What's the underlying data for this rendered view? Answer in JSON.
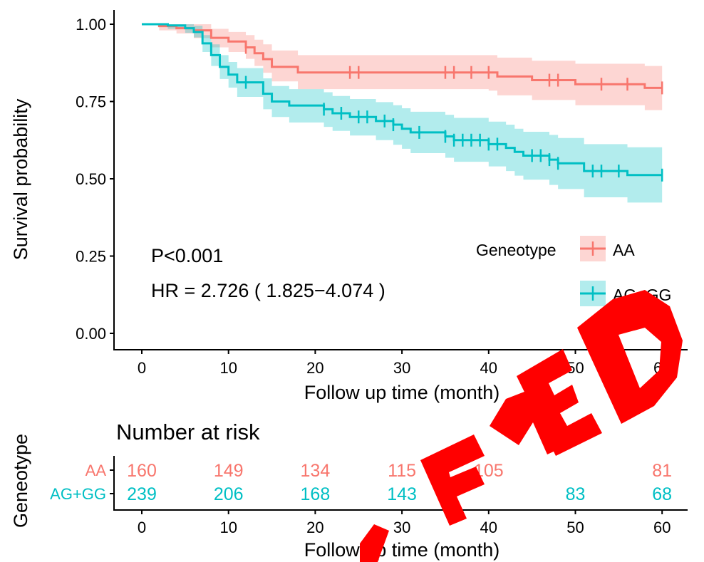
{
  "chart_data": {
    "type": "line",
    "subtype": "kaplan-meier survival curve",
    "ylabel": "Survival probability",
    "xlabel": "Follow up time (month)",
    "x_ticks": [
      0,
      10,
      20,
      30,
      40,
      50,
      60
    ],
    "y_ticks": [
      "0.00",
      "0.25",
      "0.50",
      "0.75",
      "1.00"
    ],
    "xlim": [
      -3,
      64
    ],
    "ylim": [
      0,
      1.02
    ],
    "grid": false,
    "legend": {
      "title": "Geneotype",
      "position": "right-middle",
      "entries": [
        "AA",
        "AG+GG"
      ]
    },
    "annotations": [
      "P<0.001",
      "HR = 2.726 ( 1.825−4.074 )"
    ],
    "series": [
      {
        "name": "AA",
        "color": "#F8766D",
        "band_color": "#F8766D",
        "steps": [
          [
            0,
            1.0
          ],
          [
            2,
            0.994
          ],
          [
            4,
            0.987
          ],
          [
            6,
            0.98
          ],
          [
            8,
            0.956
          ],
          [
            10,
            0.944
          ],
          [
            12,
            0.925
          ],
          [
            13,
            0.906
          ],
          [
            14,
            0.887
          ],
          [
            15,
            0.862
          ],
          [
            18,
            0.844
          ],
          [
            24,
            0.844
          ],
          [
            40,
            0.844
          ],
          [
            41,
            0.831
          ],
          [
            45,
            0.819
          ],
          [
            49,
            0.819
          ],
          [
            50,
            0.806
          ],
          [
            57,
            0.806
          ],
          [
            58,
            0.794
          ],
          [
            60,
            0.794
          ]
        ],
        "lower": [
          [
            0,
            1.0
          ],
          [
            2,
            0.98
          ],
          [
            4,
            0.97
          ],
          [
            6,
            0.955
          ],
          [
            8,
            0.925
          ],
          [
            10,
            0.91
          ],
          [
            12,
            0.888
          ],
          [
            13,
            0.865
          ],
          [
            14,
            0.843
          ],
          [
            15,
            0.815
          ],
          [
            18,
            0.79
          ],
          [
            40,
            0.785
          ],
          [
            41,
            0.77
          ],
          [
            45,
            0.755
          ],
          [
            50,
            0.738
          ],
          [
            58,
            0.722
          ],
          [
            60,
            0.72
          ]
        ],
        "upper": [
          [
            0,
            1.0
          ],
          [
            2,
            1.0
          ],
          [
            4,
            1.0
          ],
          [
            6,
            1.0
          ],
          [
            8,
            0.985
          ],
          [
            10,
            0.975
          ],
          [
            12,
            0.965
          ],
          [
            13,
            0.95
          ],
          [
            14,
            0.935
          ],
          [
            15,
            0.915
          ],
          [
            18,
            0.9
          ],
          [
            40,
            0.9
          ],
          [
            41,
            0.892
          ],
          [
            45,
            0.882
          ],
          [
            50,
            0.872
          ],
          [
            58,
            0.865
          ],
          [
            60,
            0.865
          ]
        ],
        "censor_times": [
          12,
          24,
          25,
          35,
          36,
          38,
          40,
          47,
          48,
          53,
          56,
          60
        ]
      },
      {
        "name": "AG+GG",
        "color": "#00BFC4",
        "band_color": "#00BFC4",
        "steps": [
          [
            0,
            1.0
          ],
          [
            3,
            0.996
          ],
          [
            5,
            0.987
          ],
          [
            6,
            0.975
          ],
          [
            7,
            0.938
          ],
          [
            8,
            0.9
          ],
          [
            9,
            0.862
          ],
          [
            10,
            0.837
          ],
          [
            11,
            0.812
          ],
          [
            14,
            0.775
          ],
          [
            15,
            0.75
          ],
          [
            17,
            0.737
          ],
          [
            21,
            0.725
          ],
          [
            22,
            0.712
          ],
          [
            24,
            0.7
          ],
          [
            27,
            0.687
          ],
          [
            29,
            0.675
          ],
          [
            30,
            0.662
          ],
          [
            31,
            0.65
          ],
          [
            35,
            0.637
          ],
          [
            36,
            0.625
          ],
          [
            40,
            0.612
          ],
          [
            42,
            0.6
          ],
          [
            43,
            0.587
          ],
          [
            44,
            0.575
          ],
          [
            47,
            0.562
          ],
          [
            48,
            0.55
          ],
          [
            51,
            0.525
          ],
          [
            55,
            0.525
          ],
          [
            56,
            0.512
          ],
          [
            60,
            0.512
          ]
        ],
        "lower": [
          [
            0,
            1.0
          ],
          [
            3,
            0.985
          ],
          [
            5,
            0.972
          ],
          [
            6,
            0.957
          ],
          [
            7,
            0.91
          ],
          [
            8,
            0.865
          ],
          [
            9,
            0.823
          ],
          [
            10,
            0.795
          ],
          [
            11,
            0.765
          ],
          [
            14,
            0.725
          ],
          [
            15,
            0.7
          ],
          [
            17,
            0.682
          ],
          [
            21,
            0.668
          ],
          [
            22,
            0.655
          ],
          [
            24,
            0.64
          ],
          [
            27,
            0.625
          ],
          [
            29,
            0.61
          ],
          [
            30,
            0.597
          ],
          [
            31,
            0.583
          ],
          [
            35,
            0.568
          ],
          [
            36,
            0.555
          ],
          [
            40,
            0.54
          ],
          [
            42,
            0.525
          ],
          [
            43,
            0.51
          ],
          [
            44,
            0.497
          ],
          [
            47,
            0.48
          ],
          [
            48,
            0.467
          ],
          [
            51,
            0.44
          ],
          [
            56,
            0.423
          ],
          [
            60,
            0.415
          ]
        ],
        "upper": [
          [
            0,
            1.0
          ],
          [
            3,
            1.0
          ],
          [
            5,
            1.0
          ],
          [
            6,
            0.995
          ],
          [
            7,
            0.965
          ],
          [
            8,
            0.935
          ],
          [
            9,
            0.9
          ],
          [
            10,
            0.878
          ],
          [
            11,
            0.858
          ],
          [
            14,
            0.825
          ],
          [
            15,
            0.8
          ],
          [
            17,
            0.79
          ],
          [
            21,
            0.78
          ],
          [
            22,
            0.768
          ],
          [
            24,
            0.758
          ],
          [
            27,
            0.748
          ],
          [
            29,
            0.738
          ],
          [
            30,
            0.728
          ],
          [
            31,
            0.717
          ],
          [
            35,
            0.707
          ],
          [
            36,
            0.697
          ],
          [
            40,
            0.685
          ],
          [
            42,
            0.675
          ],
          [
            43,
            0.662
          ],
          [
            44,
            0.652
          ],
          [
            47,
            0.642
          ],
          [
            48,
            0.632
          ],
          [
            51,
            0.612
          ],
          [
            56,
            0.602
          ],
          [
            60,
            0.605
          ]
        ],
        "censor_times": [
          12,
          21,
          23,
          25,
          26,
          28,
          29,
          32,
          35,
          36,
          37,
          38,
          39,
          40,
          41,
          45,
          46,
          47,
          48,
          52,
          53,
          55,
          60
        ]
      }
    ]
  },
  "risk_table": {
    "title": "Number at risk",
    "ylabel": "Geneotype",
    "xlabel": "Follow up time (month)",
    "x_ticks": [
      0,
      10,
      20,
      30,
      40,
      50,
      60
    ],
    "rows": [
      {
        "label": "AA",
        "color": "#F8766D",
        "values": [
          "160",
          "149",
          "134",
          "115",
          "105",
          "",
          "81"
        ]
      },
      {
        "label": "AG+GG",
        "color": "#00BFC4",
        "values": [
          "239",
          "206",
          "168",
          "143",
          "",
          "83",
          "68"
        ]
      }
    ]
  },
  "overlay": {
    "color": "#FF0000"
  }
}
